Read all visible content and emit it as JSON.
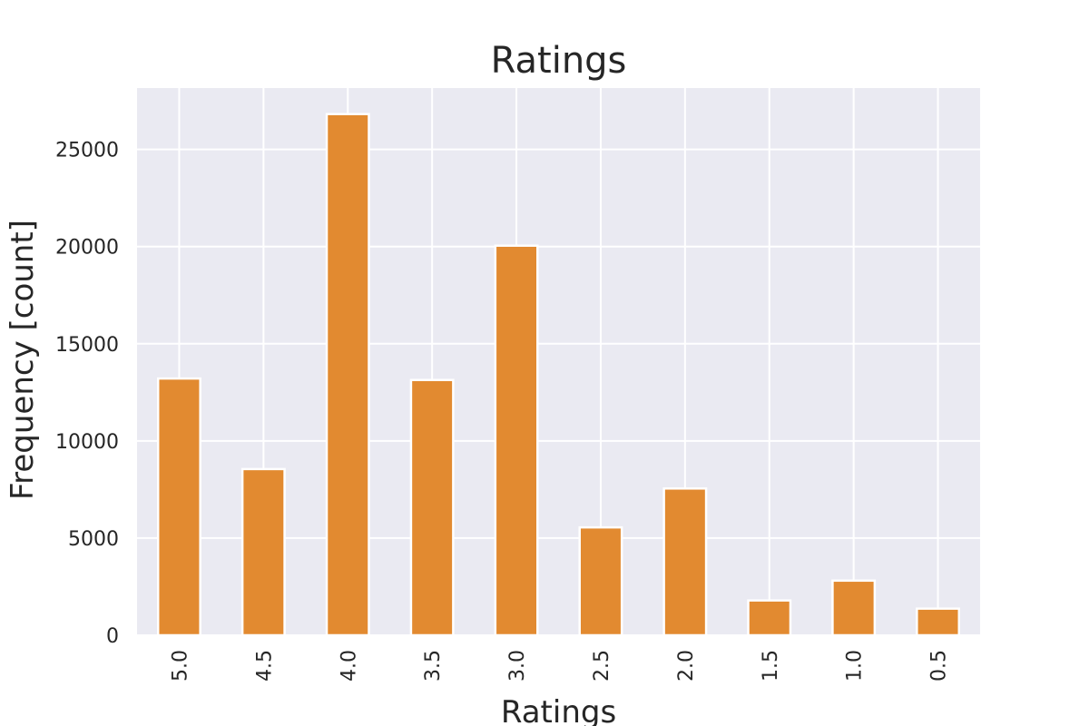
{
  "chart_data": {
    "type": "bar",
    "title": "Ratings",
    "xlabel": "Ratings",
    "ylabel": "Frequency [count]",
    "categories": [
      "5.0",
      "4.5",
      "4.0",
      "3.5",
      "3.0",
      "2.5",
      "2.0",
      "1.5",
      "1.0",
      "0.5"
    ],
    "values": [
      13211,
      8551,
      26818,
      13136,
      20047,
      5550,
      7551,
      1791,
      2811,
      1370
    ],
    "y_ticks": [
      0,
      5000,
      10000,
      15000,
      20000,
      25000
    ],
    "ylim": [
      0,
      28159
    ],
    "grid": true,
    "colors": {
      "bar": "#e28a30",
      "plot_background": "#eaeaf2",
      "grid": "#ffffff",
      "text": "#262626"
    }
  }
}
